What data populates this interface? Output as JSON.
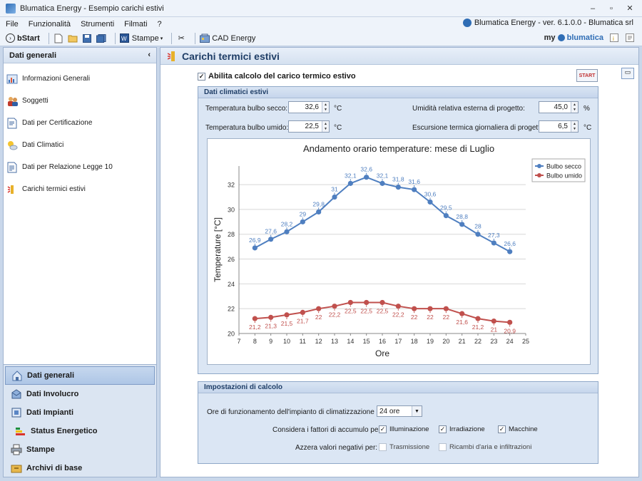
{
  "window": {
    "title": "Blumatica Energy - Esempio carichi estivi",
    "controls": [
      "–",
      "▫",
      "✕"
    ]
  },
  "menu": {
    "items": [
      "File",
      "Funzionalità",
      "Strumenti",
      "Filmati",
      "?"
    ],
    "version": "Blumatica Energy - ver. 6.1.0.0 - Blumatica srl"
  },
  "toolbar": {
    "bstart": "bStart",
    "stampe": "Stampe",
    "cad_energy": "CAD Energy",
    "brand_my": "my",
    "brand_blu": "blumatica"
  },
  "left_panel": {
    "header": "Dati generali",
    "items": [
      {
        "label": "Informazioni Generali",
        "icon": "info-chart-icon"
      },
      {
        "label": "Soggetti",
        "icon": "people-icon"
      },
      {
        "label": "Dati per Certificazione",
        "icon": "certificate-icon"
      },
      {
        "label": "Dati Climatici",
        "icon": "weather-icon"
      },
      {
        "label": "Dati per Relazione Legge 10",
        "icon": "document-icon"
      },
      {
        "label": "Carichi termici estivi",
        "icon": "sun-load-icon"
      }
    ],
    "nav": [
      {
        "label": "Dati generali",
        "active": true
      },
      {
        "label": "Dati Involucro",
        "active": false
      },
      {
        "label": "Dati Impianti",
        "active": false
      },
      {
        "label": "Status Energetico",
        "active": false
      },
      {
        "label": "Stampe",
        "active": false
      },
      {
        "label": "Archivi di base",
        "active": false
      }
    ]
  },
  "main": {
    "title": "Carichi termici estivi",
    "enable_label": "Abilita calcolo del carico termico estivo",
    "start_label": "START",
    "climate": {
      "title": "Dati climatici estivi",
      "bulbo_secco_label": "Temperatura bulbo secco:",
      "bulbo_secco_value": "32,6",
      "bulbo_umido_label": "Temperatura bulbo umido:",
      "bulbo_umido_value": "22,5",
      "unit_c": "°C",
      "umidita_label": "Umidità relativa esterna di progetto:",
      "umidita_value": "45,0",
      "unit_pct": "%",
      "escursione_label": "Escursione termica giornaliera di progetto:",
      "escursione_value": "6,5"
    },
    "settings": {
      "title": "Impostazioni di calcolo",
      "ore_label": "Ore di funzionamento dell'impianto di climatizzazione estiva:",
      "ore_value": "24 ore",
      "accumulo_label": "Considera i fattori di accumulo per:",
      "illuminazione": "Illuminazione",
      "irradiazione": "Irradiazione",
      "macchine": "Macchine",
      "azzera_label": "Azzera valori negativi per:",
      "trasmissione": "Trasmissione",
      "ricambi": "Ricambi d'aria e infiltrazioni"
    }
  },
  "chart_data": {
    "type": "line",
    "title": "Andamento orario temperature: mese di Luglio",
    "xlabel": "Ore",
    "ylabel": "Temperature [°C]",
    "xlim": [
      7,
      25
    ],
    "ylim": [
      20,
      33.5
    ],
    "xticks": [
      7,
      8,
      9,
      10,
      11,
      12,
      13,
      14,
      15,
      16,
      17,
      18,
      19,
      20,
      21,
      22,
      23,
      24,
      25
    ],
    "yticks": [
      20,
      22,
      24,
      26,
      28,
      30,
      32
    ],
    "grid": true,
    "legend": "top-right",
    "x": [
      8,
      9,
      10,
      11,
      12,
      13,
      14,
      15,
      16,
      17,
      18,
      19,
      20,
      21,
      22,
      23,
      24
    ],
    "series": [
      {
        "name": "Bulbo secco",
        "color": "#4f7fc0",
        "values": [
          26.9,
          27.6,
          28.2,
          29,
          29.8,
          31,
          32.1,
          32.6,
          32.1,
          31.8,
          31.6,
          30.6,
          29.5,
          28.8,
          28,
          27.3,
          26.6
        ],
        "labels": [
          "26,9",
          "27,6",
          "28,2",
          "29",
          "29,8",
          "31",
          "32,1",
          "32,6",
          "32,1",
          "31,8",
          "31,6",
          "30,6",
          "29,5",
          "28,8",
          "28",
          "27,3",
          "26,6"
        ]
      },
      {
        "name": "Bulbo umido",
        "color": "#c0504d",
        "values": [
          21.2,
          21.3,
          21.5,
          21.7,
          22,
          22.2,
          22.5,
          22.5,
          22.5,
          22.2,
          22,
          22,
          22,
          21.6,
          21.2,
          21,
          20.9
        ],
        "labels": [
          "21,2",
          "21,3",
          "21,5",
          "21,7",
          "22",
          "22,2",
          "22,5",
          "22,5",
          "22,5",
          "22,2",
          "22",
          "22",
          "22",
          "21,6",
          "21,2",
          "21",
          "20,9"
        ]
      }
    ]
  }
}
